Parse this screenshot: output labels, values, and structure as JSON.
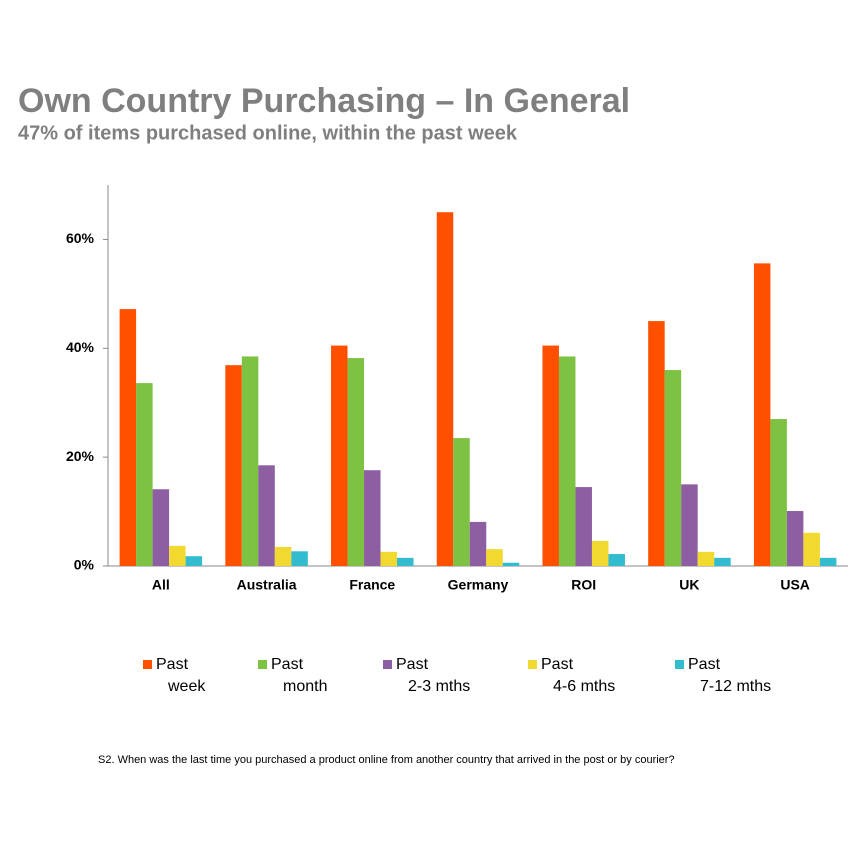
{
  "chart_data": {
    "type": "bar",
    "title": "Own Country Purchasing – In General",
    "subtitle": "47% of items purchased online, within the past week",
    "footnote": "S2. When was the last time you purchased a product online from another country that arrived in the post or by courier?",
    "categories": [
      "All",
      "Australia",
      "France",
      "Germany",
      "ROI",
      "UK",
      "USA"
    ],
    "series": [
      {
        "name": "Past\nweek",
        "color": "#ff5000",
        "values": [
          47.2,
          36.9,
          40.5,
          65,
          40.5,
          45,
          55.6
        ]
      },
      {
        "name": "Past\nmonth",
        "color": "#7dc242",
        "values": [
          33.6,
          38.5,
          38.2,
          23.5,
          38.5,
          36,
          27
        ]
      },
      {
        "name": "Past\n2-3 mths",
        "color": "#8e5ea2",
        "values": [
          14.1,
          18.5,
          17.6,
          8.1,
          14.5,
          15,
          10.1
        ]
      },
      {
        "name": "Past\n4-6 mths",
        "color": "#f2d930",
        "values": [
          3.7,
          3.5,
          2.6,
          3.1,
          4.6,
          2.6,
          6.1
        ]
      },
      {
        "name": "Past\n7-12 mths",
        "color": "#33bcd0",
        "values": [
          1.8,
          2.7,
          1.5,
          0.6,
          2.2,
          1.5,
          1.5
        ]
      }
    ],
    "ylim": [
      0,
      70
    ],
    "yticks": [
      {
        "value": 0,
        "label": "0%"
      },
      {
        "value": 20,
        "label": "20%"
      },
      {
        "value": 40,
        "label": "40%"
      },
      {
        "value": 60,
        "label": "60%"
      }
    ],
    "grid": false
  }
}
